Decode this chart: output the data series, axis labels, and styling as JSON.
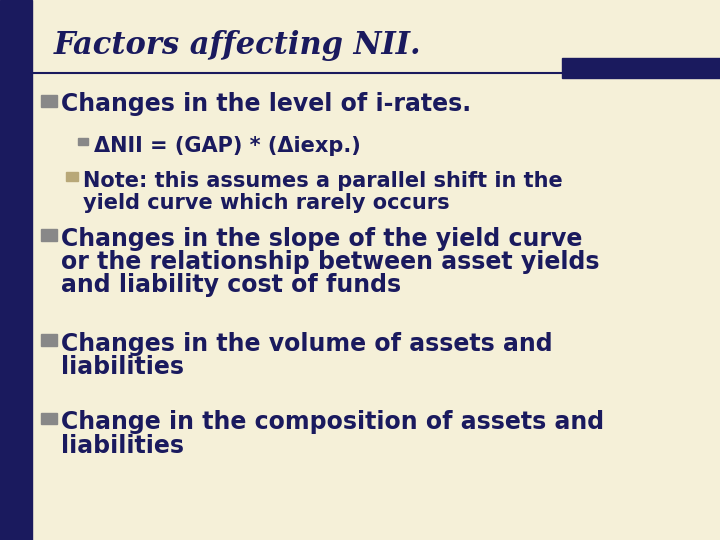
{
  "title": "Factors affecting NII.",
  "background_color": "#f5f0d8",
  "title_color": "#1a1a5e",
  "title_fontsize": 22,
  "left_bar_color": "#1a1a5e",
  "header_line_color": "#1a1a5e",
  "header_bar_color": "#1a1a5e",
  "bullet_color": "#888888",
  "bullet_color2": "#b8a878",
  "text_color": "#1a1a5e",
  "bullet1": "Changes in the level of i-rates.",
  "sub_bullet1": "ΔNII = (GAP) * (Δiexp.)",
  "sub_bullet2_line1": "Note: this assumes a parallel shift in the",
  "sub_bullet2_line2": "yield curve which rarely occurs",
  "bullet2_line1": "Changes in the slope of the yield curve",
  "bullet2_line2": "or the relationship between asset yields",
  "bullet2_line3": "and liability cost of funds",
  "bullet3_line1": "Changes in the volume of assets and",
  "bullet3_line2": "liabilities",
  "bullet4_line1": "Change in the composition of assets and",
  "bullet4_line2": "liabilities",
  "main_fontsize": 17,
  "sub_fontsize": 15
}
